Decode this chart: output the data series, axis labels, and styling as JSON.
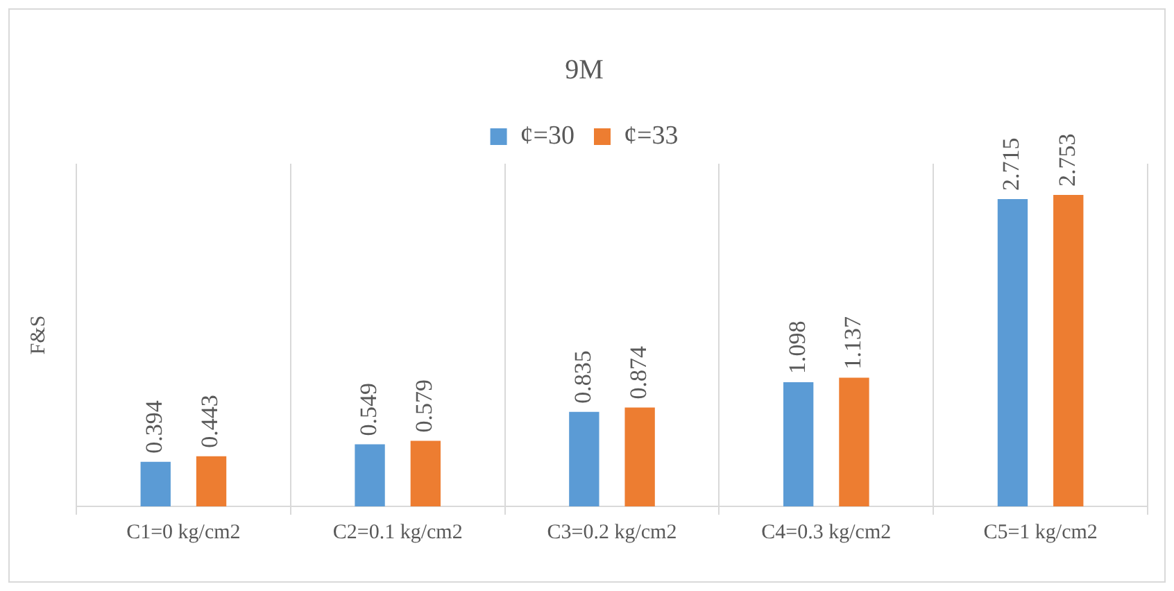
{
  "chart_data": {
    "type": "bar",
    "title": "9M",
    "ylabel": "F&S",
    "categories": [
      "C1=0 kg/cm2",
      "C2=0.1 kg/cm2",
      "C3=0.2 kg/cm2",
      "C4=0.3 kg/cm2",
      "C5=1 kg/cm2"
    ],
    "series": [
      {
        "name": "¢=30",
        "color": "#5b9bd5",
        "values": [
          0.394,
          0.549,
          0.835,
          1.098,
          2.715
        ]
      },
      {
        "name": "¢=33",
        "color": "#ed7d31",
        "values": [
          0.443,
          0.579,
          0.874,
          1.137,
          2.753
        ]
      }
    ],
    "data_labels": true,
    "grid": "x",
    "legend": "top"
  }
}
